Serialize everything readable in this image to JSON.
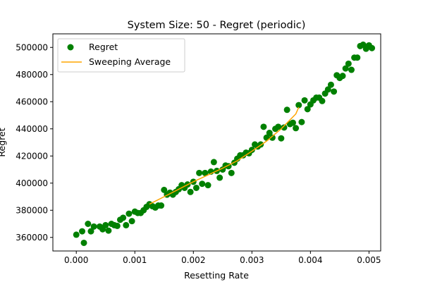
{
  "chart_data": {
    "type": "scatter",
    "title": "System Size: 50 - Regret (periodic)",
    "xlabel": "Resetting Rate",
    "ylabel": "Regret",
    "xlim": [
      -0.0004,
      0.0052
    ],
    "ylim": [
      350000,
      510000
    ],
    "xticks": [
      0.0,
      0.001,
      0.002,
      0.003,
      0.004,
      0.005
    ],
    "xtick_labels": [
      "0.000",
      "0.001",
      "0.002",
      "0.003",
      "0.004",
      "0.005"
    ],
    "yticks": [
      360000,
      380000,
      400000,
      420000,
      440000,
      460000,
      480000,
      500000
    ],
    "ytick_labels": [
      "360000",
      "380000",
      "400000",
      "420000",
      "440000",
      "460000",
      "480000",
      "500000"
    ],
    "grid": false,
    "legend": {
      "position": "top-left",
      "entries": [
        "Regret",
        "Sweeping Average"
      ]
    },
    "series": [
      {
        "name": "Regret",
        "kind": "scatter",
        "color": "#008000",
        "points": [
          [
            0.0,
            362000
          ],
          [
            0.0001,
            364500
          ],
          [
            0.00013,
            356000
          ],
          [
            0.0002,
            370000
          ],
          [
            0.00025,
            364500
          ],
          [
            0.0003,
            368000
          ],
          [
            0.0004,
            368000
          ],
          [
            0.00045,
            366000
          ],
          [
            0.0005,
            369000
          ],
          [
            0.00055,
            365000
          ],
          [
            0.0006,
            370000
          ],
          [
            0.00065,
            369000
          ],
          [
            0.0007,
            368500
          ],
          [
            0.00075,
            373000
          ],
          [
            0.0008,
            374500
          ],
          [
            0.00085,
            369000
          ],
          [
            0.0009,
            377500
          ],
          [
            0.00095,
            372000
          ],
          [
            0.001,
            379000
          ],
          [
            0.00105,
            378000
          ],
          [
            0.0011,
            378000
          ],
          [
            0.00115,
            380000
          ],
          [
            0.0012,
            382500
          ],
          [
            0.00125,
            384500
          ],
          [
            0.0013,
            383000
          ],
          [
            0.00135,
            382000
          ],
          [
            0.0014,
            383500
          ],
          [
            0.00145,
            383500
          ],
          [
            0.0015,
            395000
          ],
          [
            0.00155,
            391500
          ],
          [
            0.0016,
            393000
          ],
          [
            0.00165,
            391500
          ],
          [
            0.0017,
            393500
          ],
          [
            0.00175,
            395500
          ],
          [
            0.0018,
            398500
          ],
          [
            0.00185,
            396500
          ],
          [
            0.0019,
            399000
          ],
          [
            0.00195,
            393500
          ],
          [
            0.002,
            401000
          ],
          [
            0.00205,
            396500
          ],
          [
            0.0021,
            407500
          ],
          [
            0.00215,
            399500
          ],
          [
            0.0022,
            407500
          ],
          [
            0.00225,
            398500
          ],
          [
            0.0023,
            408500
          ],
          [
            0.00235,
            415500
          ],
          [
            0.0024,
            409000
          ],
          [
            0.00245,
            404000
          ],
          [
            0.0025,
            410000
          ],
          [
            0.00255,
            413000
          ],
          [
            0.0026,
            412500
          ],
          [
            0.00265,
            407500
          ],
          [
            0.0027,
            415000
          ],
          [
            0.00275,
            418000
          ],
          [
            0.0028,
            420500
          ],
          [
            0.00285,
            420500
          ],
          [
            0.0029,
            422500
          ],
          [
            0.00295,
            422000
          ],
          [
            0.003,
            424500
          ],
          [
            0.00305,
            428500
          ],
          [
            0.0031,
            427000
          ],
          [
            0.00315,
            428500
          ],
          [
            0.0032,
            441500
          ],
          [
            0.00325,
            433500
          ],
          [
            0.0033,
            437000
          ],
          [
            0.00335,
            433500
          ],
          [
            0.0034,
            440000
          ],
          [
            0.00345,
            441500
          ],
          [
            0.0035,
            433000
          ],
          [
            0.00355,
            441000
          ],
          [
            0.0036,
            454000
          ],
          [
            0.00365,
            443500
          ],
          [
            0.0037,
            444500
          ],
          [
            0.00375,
            440500
          ],
          [
            0.0038,
            457500
          ],
          [
            0.00385,
            445000
          ],
          [
            0.0039,
            461000
          ],
          [
            0.00395,
            454500
          ],
          [
            0.004,
            458000
          ],
          [
            0.00405,
            461000
          ],
          [
            0.0041,
            463000
          ],
          [
            0.00415,
            463000
          ],
          [
            0.0042,
            460500
          ],
          [
            0.00425,
            466000
          ],
          [
            0.0043,
            469000
          ],
          [
            0.00435,
            472500
          ],
          [
            0.0044,
            467500
          ],
          [
            0.00445,
            479500
          ],
          [
            0.0045,
            477500
          ],
          [
            0.00455,
            479000
          ],
          [
            0.0046,
            484500
          ],
          [
            0.00465,
            488000
          ],
          [
            0.0047,
            483500
          ],
          [
            0.00475,
            492500
          ],
          [
            0.0048,
            492500
          ],
          [
            0.00485,
            501000
          ],
          [
            0.0049,
            502000
          ],
          [
            0.00495,
            499000
          ],
          [
            0.005,
            501500
          ],
          [
            0.00505,
            499500
          ]
        ]
      },
      {
        "name": "Sweeping Average",
        "kind": "line",
        "color": "#FFA500",
        "points": [
          [
            0.00125,
            384500
          ],
          [
            0.0015,
            390000
          ],
          [
            0.00175,
            395500
          ],
          [
            0.002,
            401000
          ],
          [
            0.00225,
            406000
          ],
          [
            0.0025,
            411000
          ],
          [
            0.00275,
            416500
          ],
          [
            0.003,
            423500
          ],
          [
            0.00325,
            431000
          ],
          [
            0.0035,
            440000
          ],
          [
            0.00375,
            451000
          ],
          [
            0.0038,
            456000
          ]
        ]
      }
    ]
  }
}
